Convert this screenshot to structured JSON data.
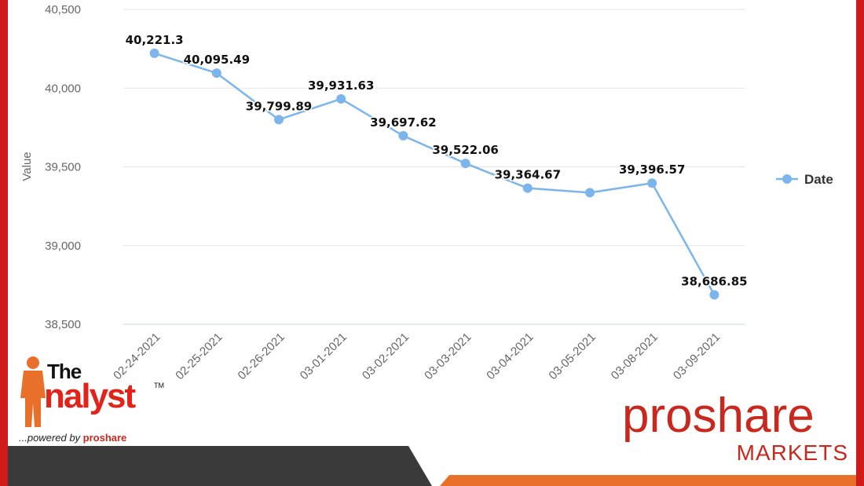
{
  "chart_data": {
    "type": "line",
    "categories": [
      "02-24-2021",
      "02-25-2021",
      "02-26-2021",
      "03-01-2021",
      "03-02-2021",
      "03-03-2021",
      "03-04-2021",
      "03-05-2021",
      "03-08-2021",
      "03-09-2021"
    ],
    "series": [
      {
        "name": "Date",
        "values": [
          40221.3,
          40095.49,
          39799.89,
          39931.63,
          39697.62,
          39522.06,
          39364.67,
          39336.0,
          39396.57,
          38686.85
        ],
        "labels": [
          "40,221.3",
          "40,095.49",
          "39,799.89",
          "39,931.63",
          "39,697.62",
          "39,522.06",
          "39,364.67",
          "",
          "39,396.57",
          "38,686.85"
        ]
      }
    ],
    "ylabel": "Value",
    "ylim": [
      38500,
      40500
    ],
    "yticks": [
      38500,
      39000,
      39500,
      40000,
      40500
    ],
    "ytick_labels": [
      "38,500",
      "39,000",
      "39,500",
      "40,000",
      "40,500"
    ],
    "grid": true,
    "legend": "right",
    "color": "#7cb5ec"
  },
  "branding": {
    "left_logo_top": "The",
    "left_logo_word": "nalyst",
    "left_logo_tm": "TM",
    "left_logo_powered": "...powered by ",
    "left_logo_powered_brand": "proshare",
    "right_logo_word": "proshare",
    "right_logo_sub": "MARKETS"
  },
  "colors": {
    "frame": "#d11a1a",
    "brand_red": "#c8281e",
    "orange": "#e8702a",
    "dark": "#3a3a3a"
  }
}
